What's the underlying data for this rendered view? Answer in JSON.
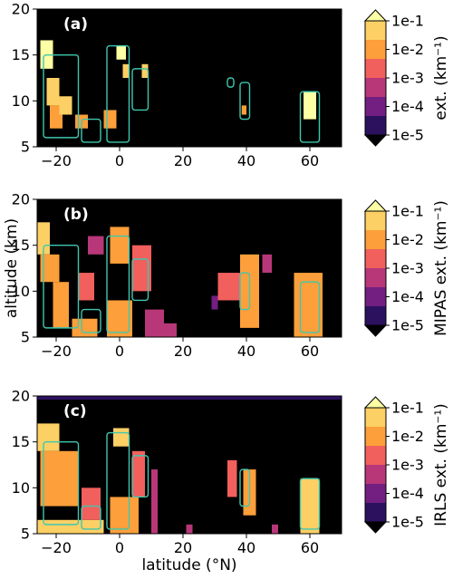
{
  "colors": {
    "background": "#000000",
    "contour": "#3fc7b0",
    "colormap": [
      "#000004",
      "#2c115f",
      "#721f81",
      "#b73779",
      "#f1605d",
      "#fd9f3a",
      "#fcd065",
      "#fcffa4"
    ]
  },
  "shared": {
    "xlabel": "latitude (°N)",
    "ylabel": "altitude (km)",
    "xlim": [
      -26,
      70
    ],
    "ylim": [
      5,
      20
    ],
    "xticks": [
      -20,
      0,
      20,
      40,
      60
    ],
    "xtick_labels": [
      "−20",
      "0",
      "20",
      "40",
      "60"
    ],
    "yticks": [
      5,
      10,
      15,
      20
    ],
    "ytick_labels": [
      "5",
      "10",
      "15",
      "20"
    ],
    "colorbar_ticks": [
      "1e-1",
      "1e-2",
      "1e-3",
      "1e-4",
      "1e-5"
    ],
    "colorbar_scale": "log",
    "colorbar_range": [
      1e-05,
      0.1
    ]
  },
  "chart_data": [
    {
      "type": "heatmap",
      "panel_label": "(a)",
      "colorbar_label": "ext. (km⁻¹)",
      "cells": [
        {
          "lat": -25,
          "lat2": -21,
          "alt": 13.5,
          "alt2": 16.6,
          "v": 0.08
        },
        {
          "lat": -23,
          "lat2": -19,
          "alt": 9.5,
          "alt2": 12.5,
          "v": 0.03
        },
        {
          "lat": -22,
          "lat2": -18,
          "alt": 7,
          "alt2": 9.5,
          "v": 0.01
        },
        {
          "lat": -19,
          "lat2": -15,
          "alt": 8.5,
          "alt2": 10.5,
          "v": 0.02
        },
        {
          "lat": -14,
          "lat2": -10,
          "alt": 7,
          "alt2": 8.5,
          "v": 0.005
        },
        {
          "lat": -5,
          "lat2": -1,
          "alt": 7,
          "alt2": 9,
          "v": 0.01
        },
        {
          "lat": -1,
          "lat2": 2,
          "alt": 14.5,
          "alt2": 16,
          "v": 0.06
        },
        {
          "lat": 1,
          "lat2": 3,
          "alt": 12.5,
          "alt2": 14,
          "v": 0.03
        },
        {
          "lat": 7,
          "lat2": 9,
          "alt": 12.5,
          "alt2": 14,
          "v": 0.02
        },
        {
          "lat": 38.5,
          "lat2": 40,
          "alt": 8.5,
          "alt2": 9.5,
          "v": 0.01
        },
        {
          "lat": 58,
          "lat2": 62,
          "alt": 8,
          "alt2": 11,
          "v": 0.08
        }
      ],
      "contours": [
        {
          "lat": -24,
          "lat2": -13,
          "alt": 6,
          "alt2": 15
        },
        {
          "lat": -12,
          "lat2": -6,
          "alt": 5.5,
          "alt2": 8
        },
        {
          "lat": -4,
          "lat2": 3,
          "alt": 5.5,
          "alt2": 16
        },
        {
          "lat": 4,
          "lat2": 9,
          "alt": 9,
          "alt2": 13.5
        },
        {
          "lat": 34,
          "lat2": 36,
          "alt": 11.5,
          "alt2": 12.5
        },
        {
          "lat": 38,
          "lat2": 41,
          "alt": 8,
          "alt2": 12
        },
        {
          "lat": 57,
          "lat2": 63,
          "alt": 5.5,
          "alt2": 11
        }
      ]
    },
    {
      "type": "heatmap",
      "panel_label": "(b)",
      "colorbar_label": "MIPAS ext. (km⁻¹)",
      "cells": [
        {
          "lat": -26,
          "lat2": -22,
          "alt": 14,
          "alt2": 17.5,
          "v": 0.03
        },
        {
          "lat": -25,
          "lat2": -19,
          "alt": 11,
          "alt2": 14,
          "v": 0.01
        },
        {
          "lat": -21,
          "lat2": -16,
          "alt": 6,
          "alt2": 11,
          "v": 0.004
        },
        {
          "lat": -15,
          "lat2": -7,
          "alt": 5,
          "alt2": 7,
          "v": 0.01
        },
        {
          "lat": -13,
          "lat2": -8,
          "alt": 9,
          "alt2": 12,
          "v": 0.001
        },
        {
          "lat": -10,
          "lat2": -5,
          "alt": 14,
          "alt2": 16,
          "v": 0.0008
        },
        {
          "lat": -3,
          "lat2": 3,
          "alt": 13,
          "alt2": 17,
          "v": 0.01
        },
        {
          "lat": -4,
          "lat2": 4,
          "alt": 5,
          "alt2": 9,
          "v": 0.005
        },
        {
          "lat": 4,
          "lat2": 10,
          "alt": 10,
          "alt2": 15,
          "v": 0.002
        },
        {
          "lat": 8,
          "lat2": 14,
          "alt": 5,
          "alt2": 8,
          "v": 0.0005
        },
        {
          "lat": 14,
          "lat2": 18,
          "alt": 5,
          "alt2": 6.5,
          "v": 0.0003
        },
        {
          "lat": 31,
          "lat2": 38,
          "alt": 9,
          "alt2": 12,
          "v": 0.002
        },
        {
          "lat": 38,
          "lat2": 44,
          "alt": 6,
          "alt2": 14,
          "v": 0.008
        },
        {
          "lat": 45,
          "lat2": 48,
          "alt": 12,
          "alt2": 14,
          "v": 0.0003
        },
        {
          "lat": 55,
          "lat2": 64,
          "alt": 5,
          "alt2": 12,
          "v": 0.01
        },
        {
          "lat": 29,
          "lat2": 31,
          "alt": 8,
          "alt2": 9.5,
          "v": 0.0002
        }
      ],
      "contours": [
        {
          "lat": -24,
          "lat2": -13,
          "alt": 6,
          "alt2": 15
        },
        {
          "lat": -12,
          "lat2": -6,
          "alt": 5.5,
          "alt2": 8
        },
        {
          "lat": -4,
          "lat2": 3,
          "alt": 5.5,
          "alt2": 16
        },
        {
          "lat": 4,
          "lat2": 9,
          "alt": 9,
          "alt2": 13.5
        },
        {
          "lat": 38,
          "lat2": 41,
          "alt": 8,
          "alt2": 12
        },
        {
          "lat": 57,
          "lat2": 63,
          "alt": 5.5,
          "alt2": 11
        }
      ]
    },
    {
      "type": "heatmap",
      "panel_label": "(c)",
      "colorbar_label": "IRLS ext. (km⁻¹)",
      "cells": [
        {
          "lat": -26,
          "lat2": 70,
          "alt": 19.6,
          "alt2": 20,
          "v": 5e-05
        },
        {
          "lat": -26,
          "lat2": -19,
          "alt": 14,
          "alt2": 17,
          "v": 0.02
        },
        {
          "lat": -25,
          "lat2": -13,
          "alt": 8,
          "alt2": 14,
          "v": 0.005
        },
        {
          "lat": -26,
          "lat2": -5,
          "alt": 5,
          "alt2": 6.5,
          "v": 0.05
        },
        {
          "lat": -12,
          "lat2": -6,
          "alt": 6.5,
          "alt2": 10,
          "v": 0.002
        },
        {
          "lat": -2,
          "lat2": 3,
          "alt": 14.5,
          "alt2": 16.5,
          "v": 0.02
        },
        {
          "lat": -3,
          "lat2": 6,
          "alt": 5,
          "alt2": 9,
          "v": 0.01
        },
        {
          "lat": 4,
          "lat2": 8,
          "alt": 9,
          "alt2": 14,
          "v": 0.002
        },
        {
          "lat": 10,
          "lat2": 12,
          "alt": 5,
          "alt2": 12,
          "v": 0.0005
        },
        {
          "lat": 34,
          "lat2": 37,
          "alt": 9,
          "alt2": 13,
          "v": 0.002
        },
        {
          "lat": 39,
          "lat2": 43,
          "alt": 7,
          "alt2": 12,
          "v": 0.005
        },
        {
          "lat": 57,
          "lat2": 63,
          "alt": 5,
          "alt2": 11,
          "v": 0.02
        },
        {
          "lat": 21,
          "lat2": 23,
          "alt": 5,
          "alt2": 6,
          "v": 0.0005
        },
        {
          "lat": 48,
          "lat2": 50,
          "alt": 5,
          "alt2": 6,
          "v": 0.0005
        }
      ],
      "contours": [
        {
          "lat": -24,
          "lat2": -13,
          "alt": 6,
          "alt2": 15
        },
        {
          "lat": -12,
          "lat2": -6,
          "alt": 5.5,
          "alt2": 8
        },
        {
          "lat": -4,
          "lat2": 3,
          "alt": 5.5,
          "alt2": 16
        },
        {
          "lat": 4,
          "lat2": 9,
          "alt": 9,
          "alt2": 13.5
        },
        {
          "lat": 38,
          "lat2": 41,
          "alt": 8,
          "alt2": 12
        },
        {
          "lat": 57,
          "lat2": 63,
          "alt": 5.5,
          "alt2": 11
        }
      ]
    }
  ]
}
